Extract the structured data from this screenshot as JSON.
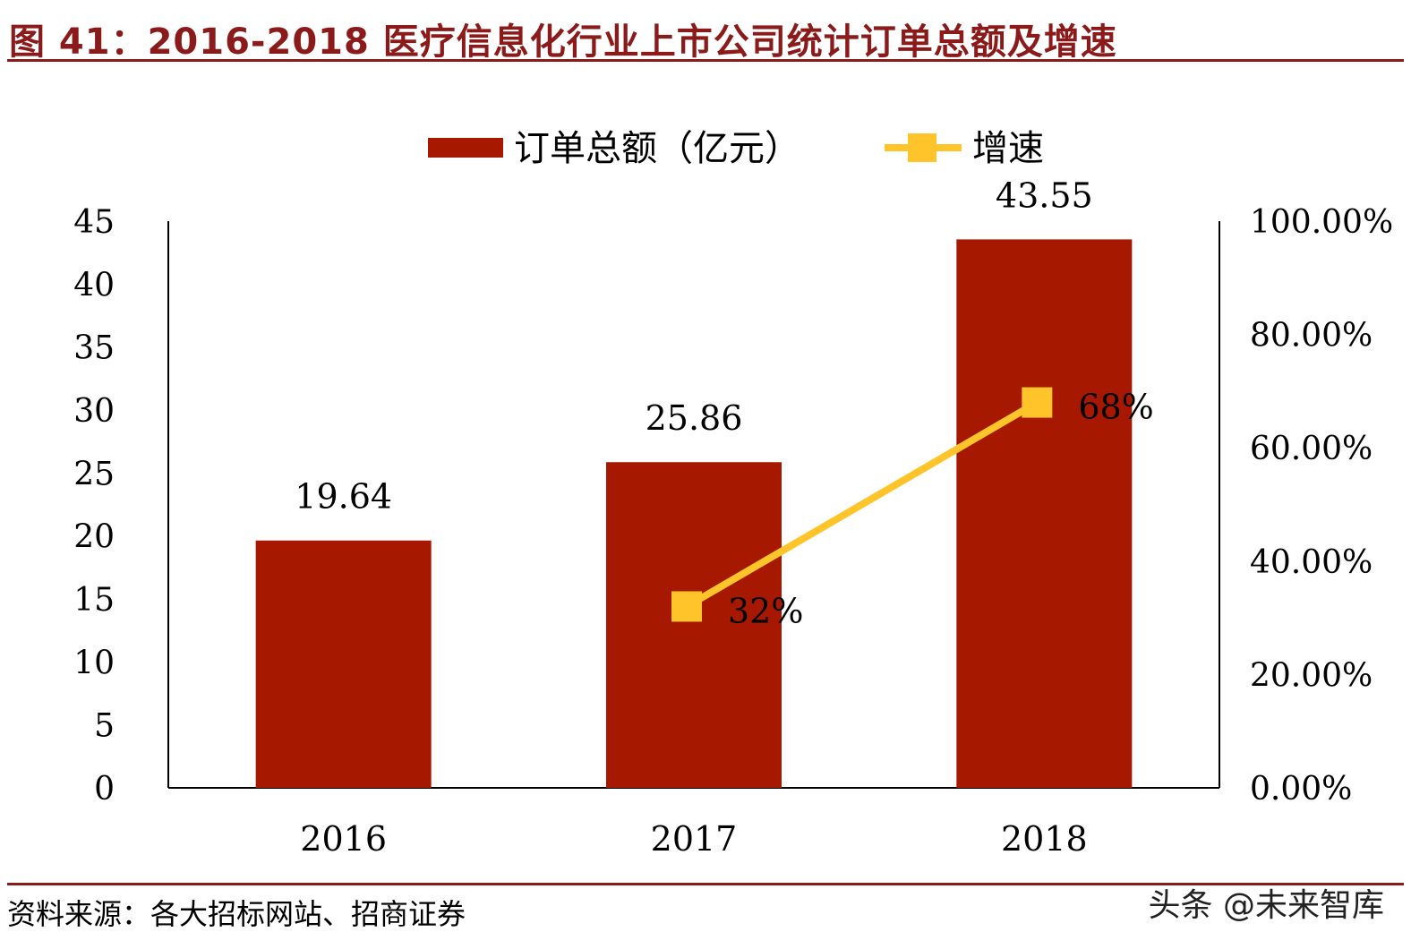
{
  "title": "图 41：2016-2018 医疗信息化行业上市公司统计订单总额及增速",
  "source": "资料来源：各大招标网站、招商证券",
  "watermark": "头条 @未来智库",
  "colors": {
    "bar": "#a61800",
    "line": "#ffc42a",
    "accent": "#8b1a1a"
  },
  "chart_data": {
    "type": "bar",
    "categories": [
      "2016",
      "2017",
      "2018"
    ],
    "series": [
      {
        "name": "订单总额（亿元）",
        "type": "bar",
        "axis": "left",
        "values": [
          19.64,
          25.86,
          43.55
        ],
        "labels": [
          "19.64",
          "25.86",
          "43.55"
        ]
      },
      {
        "name": "增速",
        "type": "line",
        "axis": "right",
        "values": [
          null,
          0.32,
          0.68
        ],
        "labels": [
          "",
          "32%",
          "68%"
        ]
      }
    ],
    "yleft": {
      "lim": [
        0,
        45
      ],
      "ticks": [
        "0",
        "5",
        "10",
        "15",
        "20",
        "25",
        "30",
        "35",
        "40",
        "45"
      ]
    },
    "yright": {
      "lim": [
        0,
        1
      ],
      "ticks": [
        "0.00%",
        "20.00%",
        "40.00%",
        "60.00%",
        "80.00%",
        "100.00%"
      ]
    },
    "legend": "top-center",
    "grid": false
  }
}
